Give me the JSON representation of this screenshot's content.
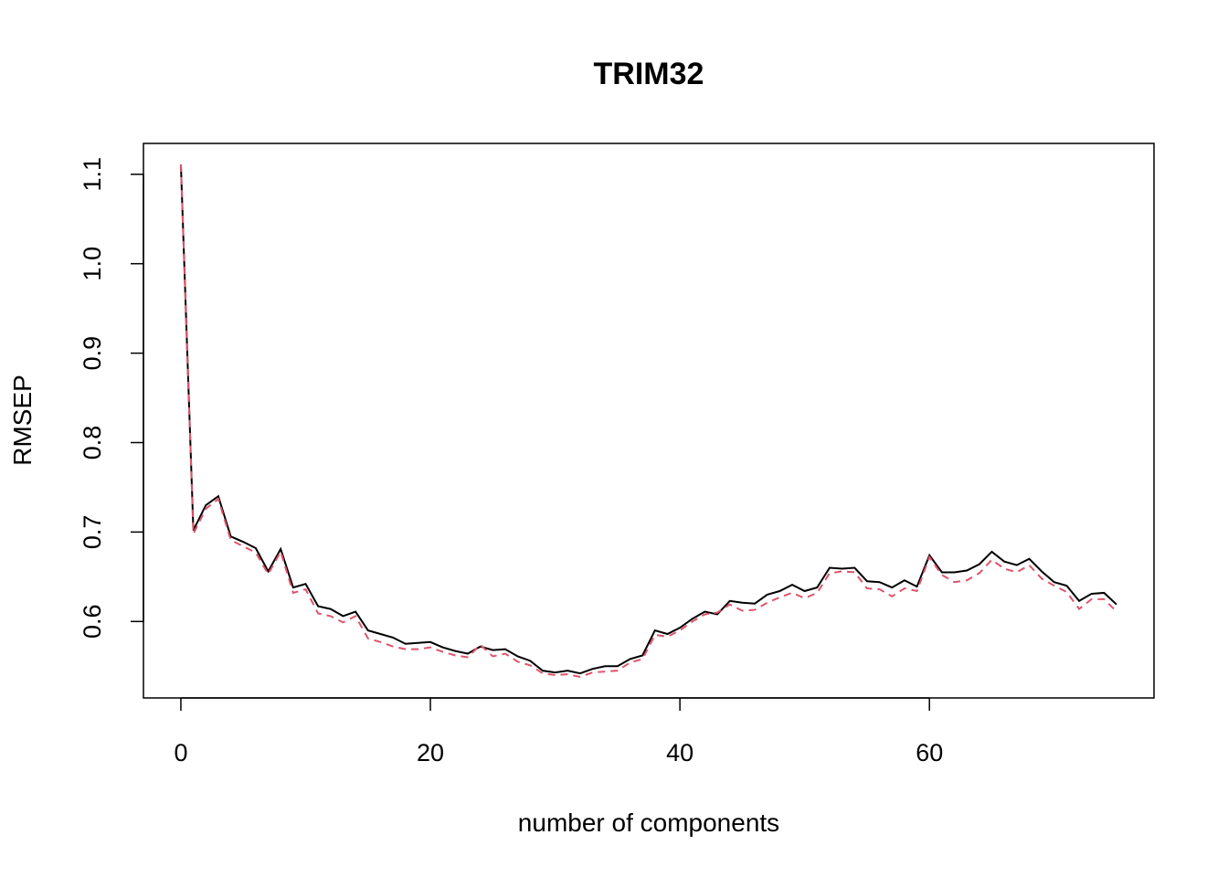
{
  "chart_data": {
    "type": "line",
    "title": "TRIM32",
    "x_label": "number of components",
    "y_label": "RMSEP",
    "x": [
      0,
      1,
      2,
      3,
      4,
      5,
      6,
      7,
      8,
      9,
      10,
      11,
      12,
      13,
      14,
      15,
      16,
      17,
      18,
      19,
      20,
      21,
      22,
      23,
      24,
      25,
      26,
      27,
      28,
      29,
      30,
      31,
      32,
      33,
      34,
      35,
      36,
      37,
      38,
      39,
      40,
      41,
      42,
      43,
      44,
      45,
      46,
      47,
      48,
      49,
      50,
      51,
      52,
      53,
      54,
      55,
      56,
      57,
      58,
      59,
      60,
      61,
      62,
      63,
      64,
      65,
      66,
      67,
      68,
      69,
      70,
      71,
      72,
      73,
      74,
      75
    ],
    "series": [
      {
        "color": "#000000",
        "dash": false,
        "values": [
          1.111,
          0.702,
          0.73,
          0.74,
          0.695,
          0.689,
          0.682,
          0.656,
          0.681,
          0.638,
          0.642,
          0.617,
          0.614,
          0.606,
          0.611,
          0.59,
          0.586,
          0.582,
          0.575,
          0.576,
          0.577,
          0.571,
          0.567,
          0.564,
          0.572,
          0.568,
          0.569,
          0.561,
          0.556,
          0.545,
          0.543,
          0.545,
          0.542,
          0.547,
          0.55,
          0.55,
          0.558,
          0.562,
          0.59,
          0.586,
          0.593,
          0.603,
          0.611,
          0.608,
          0.623,
          0.621,
          0.62,
          0.63,
          0.634,
          0.641,
          0.634,
          0.638,
          0.66,
          0.659,
          0.66,
          0.645,
          0.644,
          0.638,
          0.646,
          0.639,
          0.674,
          0.655,
          0.655,
          0.657,
          0.664,
          0.678,
          0.667,
          0.663,
          0.67,
          0.656,
          0.644,
          0.64,
          0.623,
          0.631,
          0.632,
          0.619
        ]
      },
      {
        "color": "#DF536B",
        "dash": true,
        "values": [
          1.111,
          0.698,
          0.726,
          0.737,
          0.691,
          0.684,
          0.677,
          0.653,
          0.678,
          0.632,
          0.636,
          0.609,
          0.606,
          0.599,
          0.606,
          0.581,
          0.577,
          0.572,
          0.569,
          0.569,
          0.571,
          0.566,
          0.562,
          0.56,
          0.574,
          0.561,
          0.564,
          0.555,
          0.551,
          0.542,
          0.54,
          0.541,
          0.538,
          0.543,
          0.544,
          0.545,
          0.554,
          0.558,
          0.585,
          0.583,
          0.59,
          0.6,
          0.608,
          0.61,
          0.619,
          0.612,
          0.613,
          0.621,
          0.627,
          0.632,
          0.626,
          0.632,
          0.654,
          0.656,
          0.655,
          0.637,
          0.636,
          0.628,
          0.637,
          0.634,
          0.672,
          0.652,
          0.644,
          0.646,
          0.654,
          0.669,
          0.659,
          0.655,
          0.663,
          0.648,
          0.64,
          0.633,
          0.614,
          0.625,
          0.625,
          0.611
        ]
      }
    ],
    "xlim": [
      -3,
      78
    ],
    "ylim": [
      0.5145,
      1.1345
    ],
    "xticks": [
      0,
      20,
      40,
      60
    ],
    "yticks": [
      0.6,
      0.7,
      0.8,
      0.9,
      {
        "value": 1,
        "label": "1.0"
      },
      1.1
    ]
  }
}
